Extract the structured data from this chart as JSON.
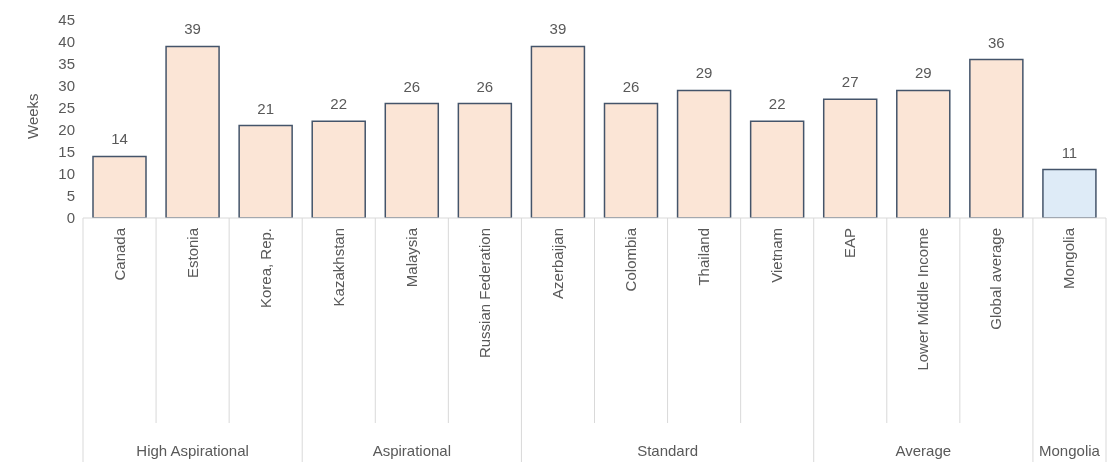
{
  "chart_data": {
    "type": "bar",
    "ylabel": "Weeks",
    "categories": [
      "Canada",
      "Estonia",
      "Korea, Rep.",
      "Kazakhstan",
      "Malaysia",
      "Russian Federation",
      "Azerbaijan",
      "Colombia",
      "Thailand",
      "Vietnam",
      "EAP",
      "Lower Middle Income",
      "Global average",
      "Mongolia"
    ],
    "values": [
      14,
      39,
      21,
      22,
      26,
      26,
      39,
      26,
      29,
      22,
      27,
      29,
      36,
      11
    ],
    "colors": [
      "#fbe5d6",
      "#fbe5d6",
      "#fbe5d6",
      "#fbe5d6",
      "#fbe5d6",
      "#fbe5d6",
      "#fbe5d6",
      "#fbe5d6",
      "#fbe5d6",
      "#fbe5d6",
      "#fbe5d6",
      "#fbe5d6",
      "#fbe5d6",
      "#deebf7"
    ],
    "ylim": [
      0,
      45
    ],
    "yticks": [
      0,
      5,
      10,
      15,
      20,
      25,
      30,
      35,
      40,
      45
    ],
    "data_labels": true,
    "grid": false,
    "legend": false,
    "annotations": [
      "High Aspirational",
      "Aspirational",
      "Standard",
      "Average",
      "Mongolia"
    ]
  }
}
